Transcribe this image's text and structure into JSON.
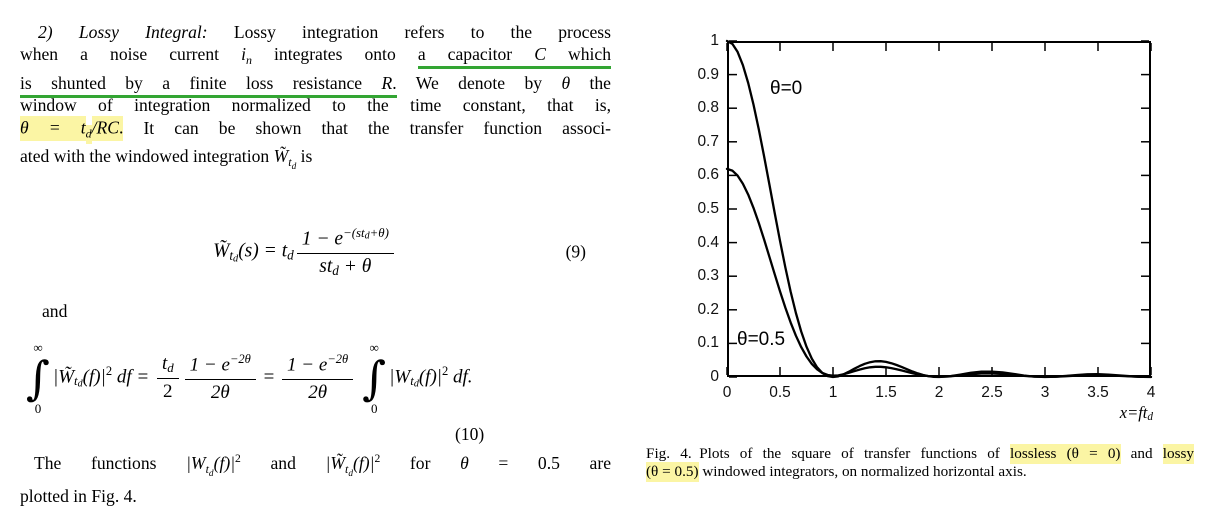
{
  "colors": {
    "highlight": "#fbf5a4",
    "underline_green": "#33a533",
    "ink": "#000000"
  },
  "body": {
    "p1l1s0": "2) Lossy Integral:",
    "p1l1s1": " Lossy integration refers to the process",
    "p1l2s0": "when a noise current ",
    "p1l2s1": "i",
    "p1l2s2": "n",
    "p1l2s3": " integrates onto ",
    "p1l2s4": "a capacitor ",
    "p1l2s5": "C",
    "p1l2s6": " which",
    "p1l3s0": "is shunted by a finite loss resistance ",
    "p1l3s1": "R",
    "p1l3s2": ".",
    "p1l3s3": " We denote by ",
    "p1l3s4": "θ",
    "p1l3s5": " the",
    "p1l4s0": "window of integration normalized to the time constant, that is,",
    "p1l5s0": "θ = t",
    "p1l5s1": "d",
    "p1l5s2": "/RC",
    "p1l5s3": ".",
    "p1l5s4": " It can be shown that the transfer function associ-",
    "p1l6s0": "ated with the windowed integration ",
    "p1l6s1": "W̃",
    "p1l6s2": "t",
    "p1l6s3": "d",
    "p1l6s4": " is",
    "and": "and",
    "p3l1s0": "The functions ",
    "p3l1s1": "|W",
    "p3l1s2": "t",
    "p3l1s3": "d",
    "p3l1s4": "(f)|",
    "p3l1s5": "2",
    "p3l1s6": " and ",
    "p3l1s7": "|W̃",
    "p3l1s8": "t",
    "p3l1s9": "d",
    "p3l1s10": "(f)|",
    "p3l1s11": "2",
    "p3l1s12": " for ",
    "p3l1s13": "θ",
    "p3l1s14": " = 0.5 are",
    "p3l2s0": "plotted in Fig. 4."
  },
  "eq9": {
    "W": "W̃",
    "W_sub_t": "t",
    "W_sub_d": "d",
    "lhs_rest": "(s) = ",
    "td_t": "t",
    "td_d": "d",
    "num_base": "1 − e",
    "exp_a": "−(st",
    "exp_sub": "d",
    "exp_b": "+θ)",
    "den_a": "st",
    "den_sub": "d",
    "den_b": " + θ",
    "number": "(9)"
  },
  "eq10": {
    "inf": "∞",
    "intg": "∫",
    "zero": "0",
    "t1a": "|W̃",
    "t1t": "t",
    "t1d": "d",
    "t1b": "(f)|",
    "t1sq": "2",
    "t1c": " df = ",
    "f1num_t": "t",
    "f1num_d": "d",
    "f1den": "2",
    "f2num": "1 − e",
    "f2exp": "−2θ",
    "f2den": "2θ",
    "eqs": " = ",
    "t2a": "|W",
    "t2t": "t",
    "t2d": "d",
    "t2b": "(f)|",
    "t2sq": "2",
    "t2c": " df.",
    "number": "(10)"
  },
  "figure": {
    "caption": {
      "l1s0": "Fig. 4.",
      "l1s1": " Plots of the square of transfer functions of ",
      "l1s2": "lossless (θ = 0)",
      "l1s3": " and ",
      "l1s4": "lossy",
      "l2s0": "(θ = 0.5)",
      "l2s1": " windowed integrators, on normalized horizontal axis."
    },
    "xlabel_main": "x=ft",
    "xlabel_sub": "d"
  },
  "chart_data": {
    "type": "line",
    "title": "",
    "xlabel": "x=ft_d",
    "ylabel": "",
    "xlim": [
      0,
      4
    ],
    "ylim": [
      0,
      1
    ],
    "grid": false,
    "xticks": [
      "0",
      "0.5",
      "1",
      "1.5",
      "2",
      "2.5",
      "3",
      "3.5",
      "4"
    ],
    "yticks": [
      "0",
      "0.1",
      "0.2",
      "0.3",
      "0.4",
      "0.5",
      "0.6",
      "0.7",
      "0.8",
      "0.9",
      "1"
    ],
    "annotations": [
      {
        "text": "θ=0"
      },
      {
        "text": "θ=0.5"
      }
    ],
    "x": [
      0,
      0.05,
      0.1,
      0.15,
      0.2,
      0.25,
      0.3,
      0.35,
      0.4,
      0.45,
      0.5,
      0.55,
      0.6,
      0.65,
      0.7,
      0.75,
      0.8,
      0.85,
      0.9,
      0.95,
      1,
      1.05,
      1.1,
      1.15,
      1.2,
      1.25,
      1.3,
      1.35,
      1.4,
      1.45,
      1.5,
      1.55,
      1.6,
      1.65,
      1.7,
      1.75,
      1.8,
      1.85,
      1.9,
      1.95,
      2,
      2.1,
      2.2,
      2.3,
      2.4,
      2.5,
      2.6,
      2.7,
      2.8,
      2.9,
      3,
      3.1,
      3.2,
      3.3,
      3.4,
      3.5,
      3.6,
      3.7,
      3.8,
      3.9,
      4
    ],
    "series": [
      {
        "name": "theta=0 (lossless), |W(f)|^2 = sinc^2(x)",
        "values": [
          1,
          0.9918,
          0.9675,
          0.9281,
          0.8751,
          0.8106,
          0.7368,
          0.6566,
          0.5728,
          0.4881,
          0.4053,
          0.3267,
          0.2546,
          0.1904,
          0.1353,
          0.0901,
          0.0547,
          0.0289,
          0.0119,
          0.0028,
          0,
          0.0022,
          0.008,
          0.0158,
          0.0243,
          0.0324,
          0.0392,
          0.0441,
          0.0468,
          0.047,
          0.045,
          0.0411,
          0.0358,
          0.0296,
          0.023,
          0.0165,
          0.0108,
          0.0061,
          0.0027,
          0.0007,
          0,
          0.0022,
          0.0072,
          0.0125,
          0.0159,
          0.0162,
          0.0136,
          0.0091,
          0.0045,
          0.0012,
          0,
          0.001,
          0.0034,
          0.0061,
          0.0079,
          0.0083,
          0.0071,
          0.0048,
          0.0024,
          0.0006,
          0
        ]
      },
      {
        "name": "theta=0.5 (lossy), |W~(f)|^2",
        "values": [
          0.6193,
          0.6143,
          0.5994,
          0.5753,
          0.5429,
          0.5034,
          0.4583,
          0.4091,
          0.3578,
          0.3059,
          0.255,
          0.2068,
          0.1624,
          0.1229,
          0.0889,
          0.0609,
          0.0389,
          0.0228,
          0.012,
          0.006,
          0.0039,
          0.0049,
          0.008,
          0.0125,
          0.0174,
          0.0221,
          0.026,
          0.0288,
          0.0303,
          0.0303,
          0.029,
          0.0265,
          0.0232,
          0.0193,
          0.0152,
          0.0113,
          0.0078,
          0.0048,
          0.0027,
          0.0014,
          0.001,
          0.0022,
          0.0052,
          0.0083,
          0.0103,
          0.0104,
          0.0088,
          0.006,
          0.0032,
          0.0012,
          0.0004,
          0.001,
          0.0025,
          0.0041,
          0.0052,
          0.0053,
          0.0046,
          0.0032,
          0.0017,
          0.0006,
          0.0002
        ]
      }
    ]
  }
}
